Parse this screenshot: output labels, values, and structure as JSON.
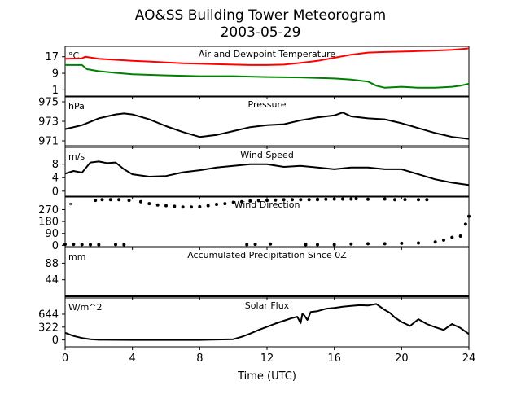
{
  "figure": {
    "title_line1": "AO&SS Building Tower Meteorogram",
    "title_line2": "2003-05-29",
    "xlabel": "Time (UTC)"
  },
  "chart_data": [
    {
      "type": "line",
      "title": "Air and Dewpoint Temperature",
      "unit": "°C",
      "ylim": [
        -2,
        22
      ],
      "yticks": [
        1,
        9,
        17
      ],
      "xlim": [
        0,
        24
      ],
      "series": [
        {
          "color": "#ff0000",
          "x": [
            0,
            1,
            1.2,
            2,
            3,
            4,
            5,
            6,
            7,
            8,
            9,
            10,
            11,
            12,
            13,
            14,
            15,
            16,
            17,
            18,
            19,
            20,
            21,
            22,
            23,
            24
          ],
          "y": [
            16,
            16.2,
            17,
            16,
            15.5,
            15,
            14.7,
            14.2,
            13.8,
            13.6,
            13.4,
            13.2,
            13.0,
            13.0,
            13.2,
            14.0,
            15.0,
            16.5,
            18,
            19,
            19.3,
            19.5,
            19.7,
            20,
            20.3,
            21
          ]
        },
        {
          "color": "#008000",
          "x": [
            0,
            1,
            1.3,
            2,
            3,
            4,
            6,
            8,
            10,
            12,
            14,
            16,
            17,
            18,
            18.5,
            19,
            20,
            21,
            22,
            23,
            23.5,
            24
          ],
          "y": [
            13,
            13,
            11,
            10,
            9.2,
            8.5,
            8,
            7.6,
            7.6,
            7.2,
            7.0,
            6.5,
            6.0,
            5.0,
            3.0,
            2.0,
            2.5,
            2.0,
            2.0,
            2.5,
            3.0,
            4.0
          ]
        }
      ]
    },
    {
      "type": "line",
      "title": "Pressure",
      "unit": "hPa",
      "ylim": [
        970.5,
        975.5
      ],
      "yticks": [
        971,
        973,
        975
      ],
      "xlim": [
        0,
        24
      ],
      "series": [
        {
          "color": "#000000",
          "x": [
            0,
            1,
            2,
            3,
            3.5,
            4,
            5,
            6,
            7,
            8,
            9,
            10,
            11,
            12,
            13,
            14,
            15,
            16,
            16.5,
            17,
            18,
            19,
            20,
            21,
            22,
            23,
            24
          ],
          "y": [
            972.2,
            972.6,
            973.3,
            973.7,
            973.8,
            973.7,
            973.2,
            972.5,
            971.9,
            971.4,
            971.6,
            972.0,
            972.4,
            972.6,
            972.7,
            973.1,
            973.4,
            973.6,
            973.9,
            973.5,
            973.3,
            973.2,
            972.8,
            972.3,
            971.8,
            971.4,
            971.2
          ]
        }
      ]
    },
    {
      "type": "line",
      "title": "Wind Speed",
      "unit": "m/s",
      "ylim": [
        -1.5,
        13
      ],
      "yticks": [
        0,
        4,
        8
      ],
      "xlim": [
        0,
        24
      ],
      "series": [
        {
          "color": "#000000",
          "x": [
            0,
            0.5,
            1,
            1.5,
            2,
            2.5,
            3,
            3.5,
            4,
            5,
            6,
            7,
            8,
            9,
            10,
            11,
            12,
            13,
            14,
            15,
            16,
            17,
            18,
            19,
            20,
            21,
            22,
            23,
            24
          ],
          "y": [
            5.2,
            6,
            5.5,
            8.5,
            8.8,
            8.3,
            8.5,
            6.5,
            5,
            4.3,
            4.5,
            5.6,
            6.2,
            7,
            7.5,
            8,
            8,
            7.2,
            7.5,
            7,
            6.5,
            7,
            7,
            6.5,
            6.5,
            5,
            3.5,
            2.5,
            1.8
          ]
        }
      ]
    },
    {
      "type": "scatter",
      "title": "Wind Direction",
      "unit": "°",
      "ylim": [
        -10,
        365
      ],
      "yticks": [
        0,
        90,
        180,
        270
      ],
      "xlim": [
        0,
        24
      ],
      "series": [
        {
          "color": "#000000",
          "x": [
            0,
            0.5,
            1,
            1.5,
            2,
            3,
            3.5,
            1.8,
            2.2,
            2.7,
            3.2,
            3.8,
            4.5,
            5,
            5.5,
            6,
            6.5,
            7,
            7.5,
            8,
            8.5,
            9,
            9.5,
            10,
            10.5,
            11,
            11.5,
            12,
            12.5,
            13,
            13.5,
            14,
            14.5,
            15,
            15.5,
            16,
            10.8,
            11.3,
            12.2,
            15,
            16.5,
            17,
            17.3,
            18,
            19,
            19.6,
            20.2,
            21,
            21.5,
            14.3,
            15,
            16,
            17,
            18,
            19,
            20,
            21,
            22,
            22.5,
            23,
            23.5,
            23.8,
            24
          ],
          "y": [
            8,
            8,
            6,
            5,
            5,
            6,
            5,
            340,
            345,
            345,
            345,
            340,
            330,
            315,
            305,
            300,
            295,
            290,
            290,
            292,
            300,
            310,
            315,
            325,
            330,
            335,
            338,
            340,
            342,
            345,
            345,
            345,
            345,
            348,
            348,
            350,
            5,
            8,
            10,
            345,
            350,
            350,
            352,
            348,
            350,
            345,
            346,
            345,
            345,
            5,
            5,
            5,
            10,
            12,
            12,
            15,
            18,
            25,
            40,
            60,
            70,
            160,
            220
          ]
        }
      ]
    },
    {
      "type": "line",
      "title": "Accumulated Precipitation Since 0Z",
      "unit": "mm",
      "ylim": [
        0,
        130
      ],
      "yticks": [
        44,
        88
      ],
      "xlim": [
        0,
        24
      ],
      "series": [
        {
          "color": "#000000",
          "x": [
            0,
            24
          ],
          "y": [
            0,
            0
          ]
        }
      ]
    },
    {
      "type": "line",
      "title": "Solar Flux",
      "unit": "W/m^2",
      "ylim": [
        -170,
        1050
      ],
      "yticks": [
        0,
        322,
        644
      ],
      "xlim": [
        0,
        24
      ],
      "series": [
        {
          "color": "#000000",
          "x": [
            0,
            0.5,
            1,
            1.5,
            2,
            4,
            8,
            10,
            10.5,
            11,
            11.5,
            12,
            12.5,
            13,
            13.5,
            13.8,
            14,
            14.1,
            14.2,
            14.4,
            14.6,
            15,
            15.5,
            16,
            16.5,
            17,
            17.5,
            18,
            18.5,
            19,
            19.3,
            19.6,
            20,
            20.5,
            21,
            21.5,
            22,
            22.5,
            23,
            23.5,
            24
          ],
          "y": [
            180,
            100,
            50,
            20,
            5,
            0,
            0,
            20,
            80,
            160,
            250,
            330,
            410,
            480,
            550,
            580,
            420,
            650,
            620,
            500,
            700,
            720,
            780,
            800,
            830,
            850,
            870,
            860,
            900,
            750,
            680,
            560,
            450,
            350,
            520,
            400,
            320,
            250,
            400,
            300,
            150
          ]
        }
      ]
    }
  ],
  "xaxis": {
    "ticks": [
      0,
      4,
      8,
      12,
      16,
      20,
      24
    ],
    "labels": [
      "0",
      "4",
      "8",
      "12",
      "16",
      "20",
      "24"
    ]
  }
}
